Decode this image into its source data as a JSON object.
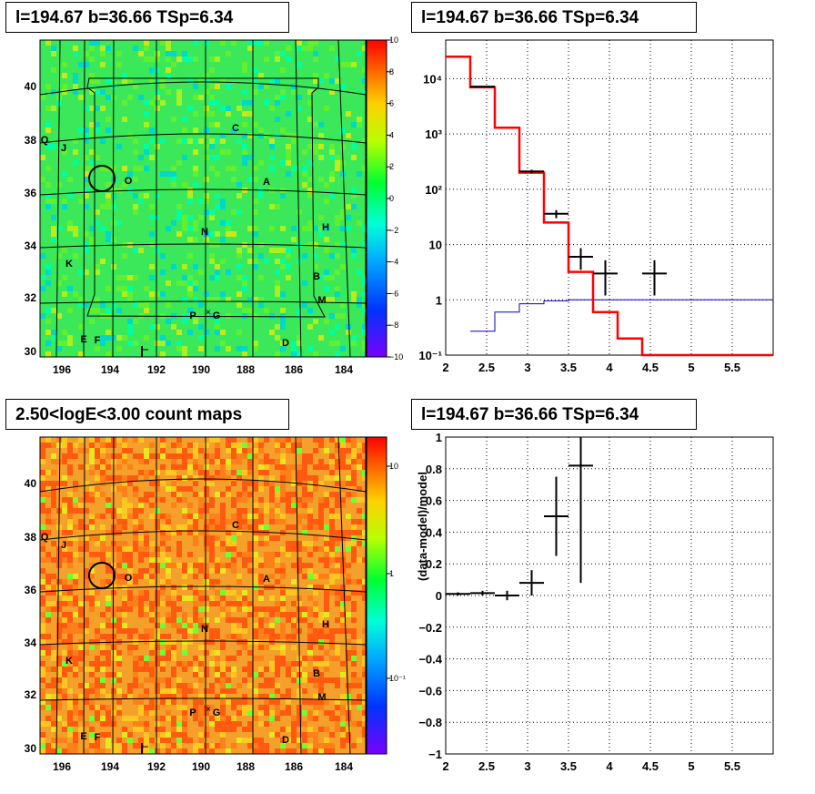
{
  "panels": {
    "tl_title": "l=194.67 b=36.66 TSp=6.34",
    "tr_title": "l=194.67 b=36.66 TSp=6.34",
    "bl_title": "2.50<logE<3.00 count maps",
    "br_title": "l=194.67 b=36.66 TSp=6.34"
  },
  "colors": {
    "model": "#ff0000",
    "background": "#0000cc",
    "data": "#000000"
  },
  "chart_data": [
    {
      "type": "heatmap",
      "panel": "top-left",
      "xticks": [
        "196",
        "194",
        "192",
        "190",
        "188",
        "186",
        "184"
      ],
      "yticks": [
        "30",
        "32",
        "34",
        "36",
        "38",
        "40"
      ],
      "colorbar_ticks": [
        "10",
        "8",
        "6",
        "4",
        "2",
        "0",
        "−2",
        "−4",
        "−6",
        "−8",
        "−10"
      ],
      "colorbar_range": [
        -10,
        10
      ],
      "sources": [
        "Q",
        "J",
        "O",
        "C",
        "A",
        "H",
        "N",
        "K",
        "B",
        "M",
        "P",
        "G",
        "E",
        "F",
        "D"
      ],
      "source_marker": "×"
    },
    {
      "type": "line",
      "panel": "top-right",
      "yscale": "log",
      "xlim": [
        2,
        6
      ],
      "ylim": [
        0.1,
        50000
      ],
      "xticks": [
        "2",
        "2.5",
        "3",
        "3.5",
        "4",
        "4.5",
        "5",
        "5.5"
      ],
      "yticks": [
        "10⁴",
        "10³",
        "10²",
        "10",
        "1",
        "10⁻¹"
      ],
      "model_step_edges": [
        2.0,
        2.3,
        2.6,
        2.9,
        3.2,
        3.5,
        3.8,
        4.1,
        4.4,
        6.0
      ],
      "model_step_values": [
        25000,
        7000,
        1300,
        200,
        25,
        3.2,
        0.6,
        0.2,
        0.1
      ],
      "background_step_edges": [
        2.3,
        2.6,
        2.9,
        3.2,
        3.5,
        6.0
      ],
      "background_step_values": [
        0.27,
        0.6,
        0.85,
        0.96,
        1.0
      ],
      "data_points": [
        {
          "x": 2.45,
          "xerr": 0.15,
          "y": 7200,
          "ylo": 7050,
          "yhi": 7350
        },
        {
          "x": 3.05,
          "xerr": 0.15,
          "y": 210,
          "ylo": 195,
          "yhi": 225
        },
        {
          "x": 3.35,
          "xerr": 0.15,
          "y": 36,
          "ylo": 30,
          "yhi": 42
        },
        {
          "x": 3.65,
          "xerr": 0.15,
          "y": 6,
          "ylo": 3.5,
          "yhi": 8.6
        },
        {
          "x": 3.95,
          "xerr": 0.15,
          "y": 3,
          "ylo": 1.2,
          "yhi": 5.2
        },
        {
          "x": 4.55,
          "xerr": 0.15,
          "y": 3,
          "ylo": 1.2,
          "yhi": 5.2
        }
      ]
    },
    {
      "type": "heatmap",
      "panel": "bottom-left",
      "xticks": [
        "196",
        "194",
        "192",
        "190",
        "188",
        "186",
        "184"
      ],
      "yticks": [
        "30",
        "32",
        "34",
        "36",
        "38",
        "40"
      ],
      "colorbar_ticks": [
        "10",
        "1",
        "10⁻¹"
      ],
      "colorbar_scale": "log",
      "sources": [
        "Q",
        "J",
        "O",
        "C",
        "A",
        "H",
        "N",
        "K",
        "B",
        "M",
        "P",
        "G",
        "E",
        "F",
        "D"
      ],
      "source_marker": "×"
    },
    {
      "type": "scatter",
      "panel": "bottom-right",
      "ylabel": "(data-model)/model",
      "xlim": [
        2,
        6
      ],
      "ylim": [
        -1,
        1
      ],
      "xticks": [
        "2",
        "2.5",
        "3",
        "3.5",
        "4",
        "4.5",
        "5",
        "5.5"
      ],
      "yticks": [
        "1",
        "0.8",
        "0.6",
        "0.4",
        "0.2",
        "0",
        "−0.2",
        "−0.4",
        "−0.6",
        "−0.8",
        "−1"
      ],
      "data_points": [
        {
          "x": 2.15,
          "xerr": 0.15,
          "y": 0.01,
          "ylo": 0.0,
          "yhi": 0.02
        },
        {
          "x": 2.45,
          "xerr": 0.15,
          "y": 0.015,
          "ylo": 0.0,
          "yhi": 0.03
        },
        {
          "x": 2.75,
          "xerr": 0.15,
          "y": 0.0,
          "ylo": -0.03,
          "yhi": 0.03
        },
        {
          "x": 3.05,
          "xerr": 0.15,
          "y": 0.08,
          "ylo": 0.0,
          "yhi": 0.16
        },
        {
          "x": 3.35,
          "xerr": 0.15,
          "y": 0.5,
          "ylo": 0.25,
          "yhi": 0.75
        },
        {
          "x": 3.65,
          "xerr": 0.15,
          "y": 0.82,
          "ylo": 0.08,
          "yhi": 1.0
        }
      ]
    }
  ]
}
